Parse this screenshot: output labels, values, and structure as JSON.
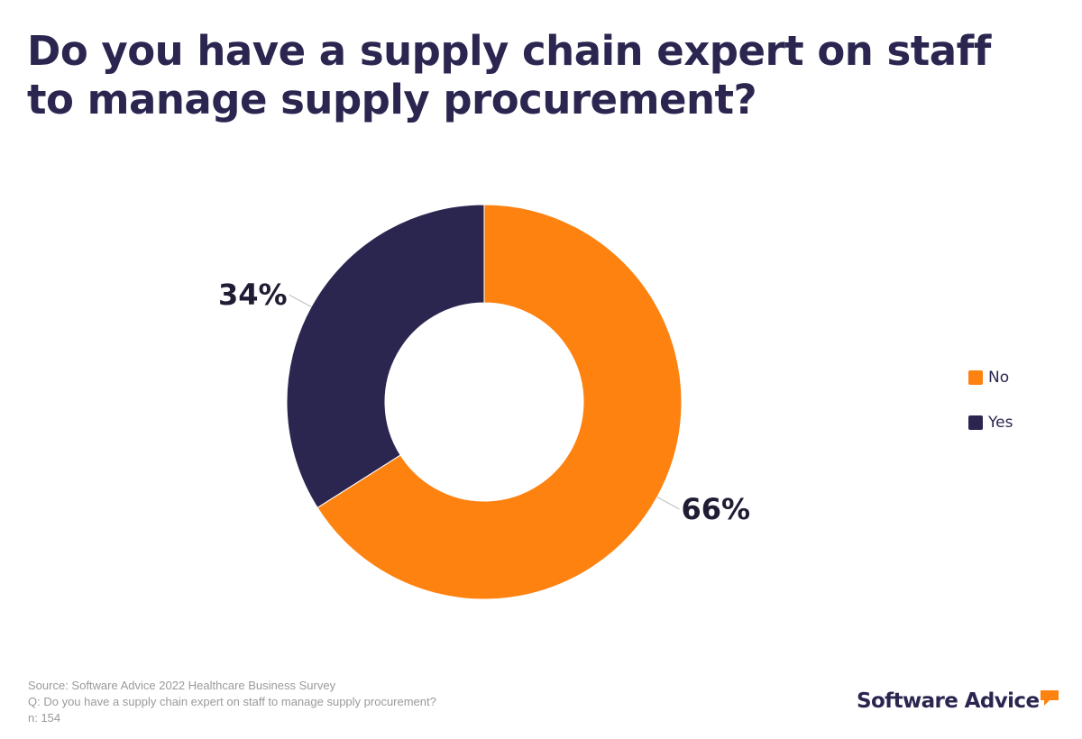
{
  "title": "Do you have a supply chain expert on staff to manage supply procurement?",
  "chart_data": {
    "type": "pie",
    "donut": true,
    "title": "Do you have a supply chain expert on staff to manage supply procurement?",
    "slices": [
      {
        "name": "No",
        "value": 66,
        "label": "66%",
        "color": "#fd8210"
      },
      {
        "name": "Yes",
        "value": 34,
        "label": "34%",
        "color": "#2b2650"
      }
    ],
    "legend": {
      "position": "right",
      "items": [
        {
          "label": "No",
          "color": "#fd8210"
        },
        {
          "label": "Yes",
          "color": "#2b2650"
        }
      ]
    }
  },
  "footer": {
    "source": "Source: Software Advice 2022 Healthcare Business Survey",
    "question": "Q: Do you have a supply chain expert on staff to manage supply procurement?",
    "n": "n: 154"
  },
  "logo": {
    "text": "Software Advice",
    "accent_color": "#fd8210"
  }
}
